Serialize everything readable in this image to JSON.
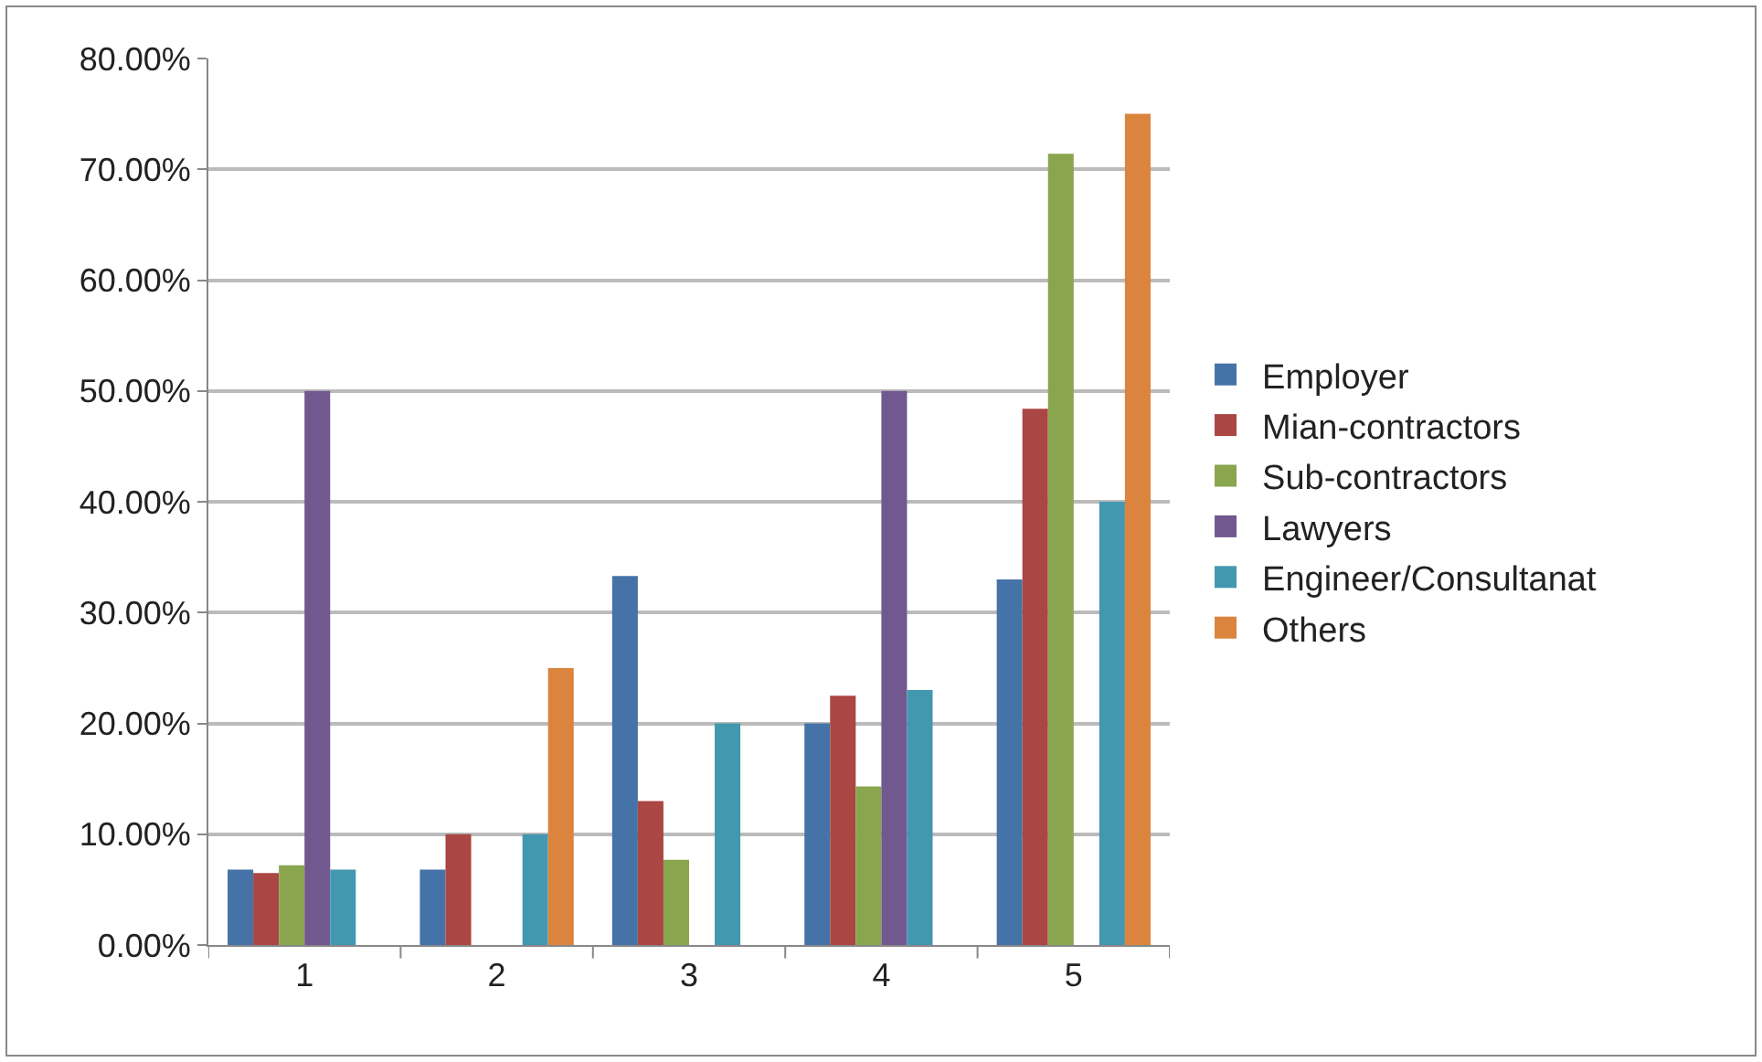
{
  "chart_data": {
    "type": "bar",
    "categories": [
      "1",
      "2",
      "3",
      "4",
      "5"
    ],
    "series": [
      {
        "name": "Employer",
        "color": "#4572a7",
        "values": [
          6.8,
          6.8,
          33.3,
          20,
          33
        ]
      },
      {
        "name": "Mian-contractors",
        "color": "#aa4643",
        "values": [
          6.5,
          10,
          13,
          22.5,
          48.4
        ]
      },
      {
        "name": "Sub-contractors",
        "color": "#89a54e",
        "values": [
          7.2,
          null,
          7.7,
          14.3,
          71.4
        ]
      },
      {
        "name": "Lawyers",
        "color": "#71588f",
        "values": [
          50,
          null,
          null,
          50,
          null
        ]
      },
      {
        "name": "Engineer/Consultanat",
        "color": "#4198af",
        "values": [
          6.8,
          10,
          20,
          23,
          40
        ]
      },
      {
        "name": "Others",
        "color": "#db843d",
        "values": [
          null,
          25,
          null,
          null,
          75
        ]
      }
    ],
    "ylim": [
      0,
      80
    ],
    "yticks": [
      {
        "value": 0,
        "label": "0.00%"
      },
      {
        "value": 10,
        "label": "10.00%"
      },
      {
        "value": 20,
        "label": "20.00%"
      },
      {
        "value": 30,
        "label": "30.00%"
      },
      {
        "value": 40,
        "label": "40.00%"
      },
      {
        "value": 50,
        "label": "50.00%"
      },
      {
        "value": 60,
        "label": "60.00%"
      },
      {
        "value": 70,
        "label": "70.00%"
      },
      {
        "value": 80,
        "label": "80.00%"
      }
    ],
    "grid": "y",
    "legend": "right"
  }
}
